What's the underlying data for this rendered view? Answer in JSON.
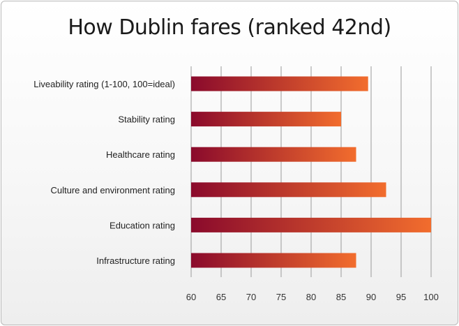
{
  "chart_data": {
    "type": "bar",
    "orientation": "horizontal",
    "title": "How Dublin fares (ranked 42nd)",
    "categories": [
      "Liveability rating (1-100, 100=ideal)",
      "Stability rating",
      "Healthcare rating",
      "Culture and environment rating",
      "Education rating",
      "Infrastructure rating"
    ],
    "values": [
      89.5,
      85,
      87.5,
      92.5,
      100,
      87.5
    ],
    "xlim": [
      60,
      100
    ],
    "xticks": [
      "60",
      "65",
      "70",
      "75",
      "80",
      "85",
      "90",
      "95",
      "100"
    ],
    "grid": "vertical",
    "colors": {
      "bar_start": "#8a0a2c",
      "bar_end": "#f26d2d",
      "grid": "#9a9a9a"
    }
  }
}
